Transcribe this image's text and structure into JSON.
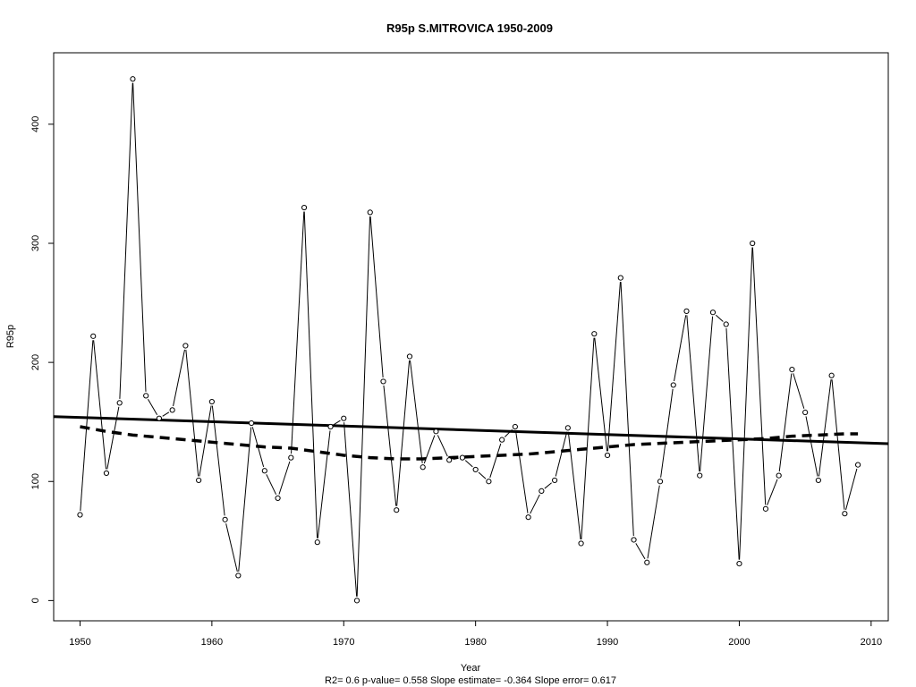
{
  "chart_data": {
    "type": "line",
    "title": "R95p   S.MITROVICA 1950-2009",
    "xlabel": "Year",
    "ylabel": "R95p",
    "caption": "R2= 0.6  p-value= 0.558  Slope estimate= -0.364  Slope error= 0.617",
    "xlim": [
      1948,
      2011.3
    ],
    "ylim": [
      -17,
      460
    ],
    "x_ticks": [
      1950,
      1960,
      1970,
      1980,
      1990,
      2000,
      2010
    ],
    "y_ticks": [
      0,
      100,
      200,
      300,
      400
    ],
    "grid": false,
    "x": [
      1950,
      1951,
      1952,
      1953,
      1954,
      1955,
      1956,
      1957,
      1958,
      1959,
      1960,
      1961,
      1962,
      1963,
      1964,
      1965,
      1966,
      1967,
      1968,
      1969,
      1970,
      1971,
      1972,
      1973,
      1974,
      1975,
      1976,
      1977,
      1978,
      1979,
      1980,
      1981,
      1982,
      1983,
      1984,
      1985,
      1986,
      1987,
      1988,
      1989,
      1990,
      1991,
      1992,
      1993,
      1994,
      1995,
      1996,
      1997,
      1998,
      1999,
      2000,
      2001,
      2002,
      2003,
      2004,
      2005,
      2006,
      2007,
      2008,
      2009
    ],
    "series": [
      {
        "values": [
          72,
          222,
          107,
          166,
          438,
          172,
          153,
          160,
          214,
          101,
          167,
          68,
          21,
          149,
          109,
          86,
          120,
          330,
          49,
          146,
          153,
          0,
          326,
          184,
          76,
          205,
          112,
          142,
          118,
          120,
          110,
          100,
          135,
          146,
          70,
          92,
          101,
          145,
          48,
          224,
          122,
          271,
          51,
          32,
          100,
          181,
          243,
          105,
          242,
          232,
          31,
          300,
          77,
          105,
          194,
          158,
          101,
          189,
          73,
          114
        ]
      }
    ],
    "trend_line": {
      "style": "solid",
      "x": [
        1948,
        2011.3
      ],
      "y": [
        154.5,
        131.7
      ]
    },
    "smooth_line": {
      "style": "dashed",
      "x": [
        1950,
        1952,
        1954,
        1956,
        1958,
        1960,
        1962,
        1964,
        1966,
        1968,
        1970,
        1972,
        1974,
        1976,
        1978,
        1980,
        1982,
        1984,
        1986,
        1988,
        1990,
        1992,
        1994,
        1996,
        1998,
        2000,
        2002,
        2004,
        2006,
        2008,
        2009
      ],
      "y": [
        146,
        142,
        139,
        137,
        135,
        133,
        131,
        129,
        128,
        125,
        122,
        120,
        119,
        119,
        120,
        121,
        122,
        123,
        125,
        127,
        129,
        131,
        132,
        133,
        134,
        135,
        136,
        138,
        139,
        140,
        140
      ]
    }
  }
}
